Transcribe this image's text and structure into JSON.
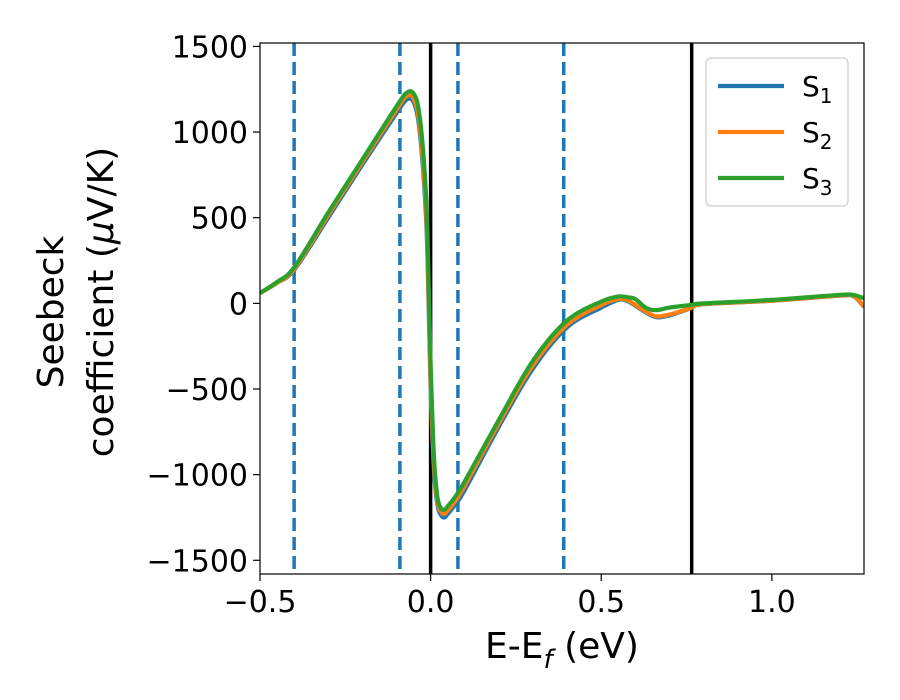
{
  "chart_data": {
    "type": "line",
    "title": "",
    "xlabel": "E-E",
    "xlabel_sub": "f",
    "xlabel_unit": " (eV)",
    "ylabel_line1": "Seebeck",
    "ylabel_line2": "coefficient  (",
    "ylabel_mu": "μ",
    "ylabel_unit": "V/K)",
    "xlim": [
      -0.5,
      1.27
    ],
    "ylim": [
      -1580,
      1520
    ],
    "xticks": [
      -0.5,
      0.0,
      0.5,
      1.0
    ],
    "xtick_labels": [
      "−0.5",
      "0.0",
      "0.5",
      "1.0"
    ],
    "yticks": [
      1500,
      1000,
      500,
      0,
      -500,
      -1000,
      -1500
    ],
    "ytick_labels": [
      "1500",
      "1000",
      "500",
      "0",
      "−500",
      "−1000",
      "−1500"
    ],
    "grid": false,
    "legend_position": "top-right",
    "vlines_dashed": {
      "color": "#1f77b4",
      "x": [
        -0.4,
        -0.09,
        0.08,
        0.39
      ]
    },
    "vlines_solid": {
      "color": "#000000",
      "x": [
        0.0,
        0.765
      ]
    },
    "series": [
      {
        "name": "S",
        "sub": "1",
        "color": "#1f77b4",
        "x": [
          -0.5,
          -0.45,
          -0.4,
          -0.3,
          -0.2,
          -0.1,
          -0.07,
          -0.05,
          -0.035,
          -0.02,
          -0.01,
          0.0,
          0.01,
          0.02,
          0.03,
          0.04,
          0.05,
          0.07,
          0.1,
          0.2,
          0.3,
          0.4,
          0.5,
          0.55,
          0.58,
          0.62,
          0.66,
          0.7,
          0.76,
          0.8,
          1.0,
          1.2,
          1.24,
          1.27
        ],
        "y": [
          60,
          120,
          195,
          500,
          810,
          1110,
          1190,
          1175,
          1050,
          720,
          330,
          -500,
          -980,
          -1175,
          -1235,
          -1250,
          -1230,
          -1180,
          -1090,
          -720,
          -380,
          -140,
          -25,
          20,
          10,
          -40,
          -80,
          -70,
          -30,
          -5,
          15,
          45,
          40,
          -20
        ]
      },
      {
        "name": "S",
        "sub": "2",
        "color": "#ff7f0e",
        "x": [
          -0.5,
          -0.45,
          -0.4,
          -0.3,
          -0.2,
          -0.1,
          -0.07,
          -0.05,
          -0.035,
          -0.02,
          -0.01,
          0.0,
          0.01,
          0.02,
          0.03,
          0.04,
          0.05,
          0.07,
          0.1,
          0.2,
          0.3,
          0.4,
          0.5,
          0.55,
          0.58,
          0.62,
          0.66,
          0.7,
          0.76,
          0.8,
          1.0,
          1.2,
          1.24,
          1.27
        ],
        "y": [
          60,
          120,
          200,
          515,
          825,
          1130,
          1210,
          1195,
          1080,
          760,
          380,
          -450,
          -950,
          -1155,
          -1215,
          -1230,
          -1210,
          -1160,
          -1065,
          -700,
          -360,
          -125,
          -10,
          25,
          15,
          -35,
          -75,
          -65,
          -28,
          -4,
          16,
          46,
          42,
          -18
        ]
      },
      {
        "name": "S",
        "sub": "3",
        "color": "#2ca02c",
        "x": [
          -0.5,
          -0.45,
          -0.4,
          -0.3,
          -0.2,
          -0.1,
          -0.07,
          -0.05,
          -0.035,
          -0.02,
          -0.01,
          0.0,
          0.01,
          0.02,
          0.03,
          0.04,
          0.05,
          0.07,
          0.1,
          0.2,
          0.3,
          0.4,
          0.5,
          0.55,
          0.58,
          0.6,
          0.63,
          0.66,
          0.7,
          0.76,
          0.8,
          1.0,
          1.2,
          1.24,
          1.27
        ],
        "y": [
          60,
          125,
          210,
          530,
          840,
          1150,
          1230,
          1225,
          1130,
          840,
          460,
          -350,
          -900,
          -1130,
          -1195,
          -1205,
          -1185,
          -1135,
          -1040,
          -680,
          -335,
          -100,
          10,
          40,
          35,
          25,
          -25,
          -40,
          -25,
          -10,
          0,
          20,
          50,
          48,
          30
        ]
      }
    ]
  }
}
